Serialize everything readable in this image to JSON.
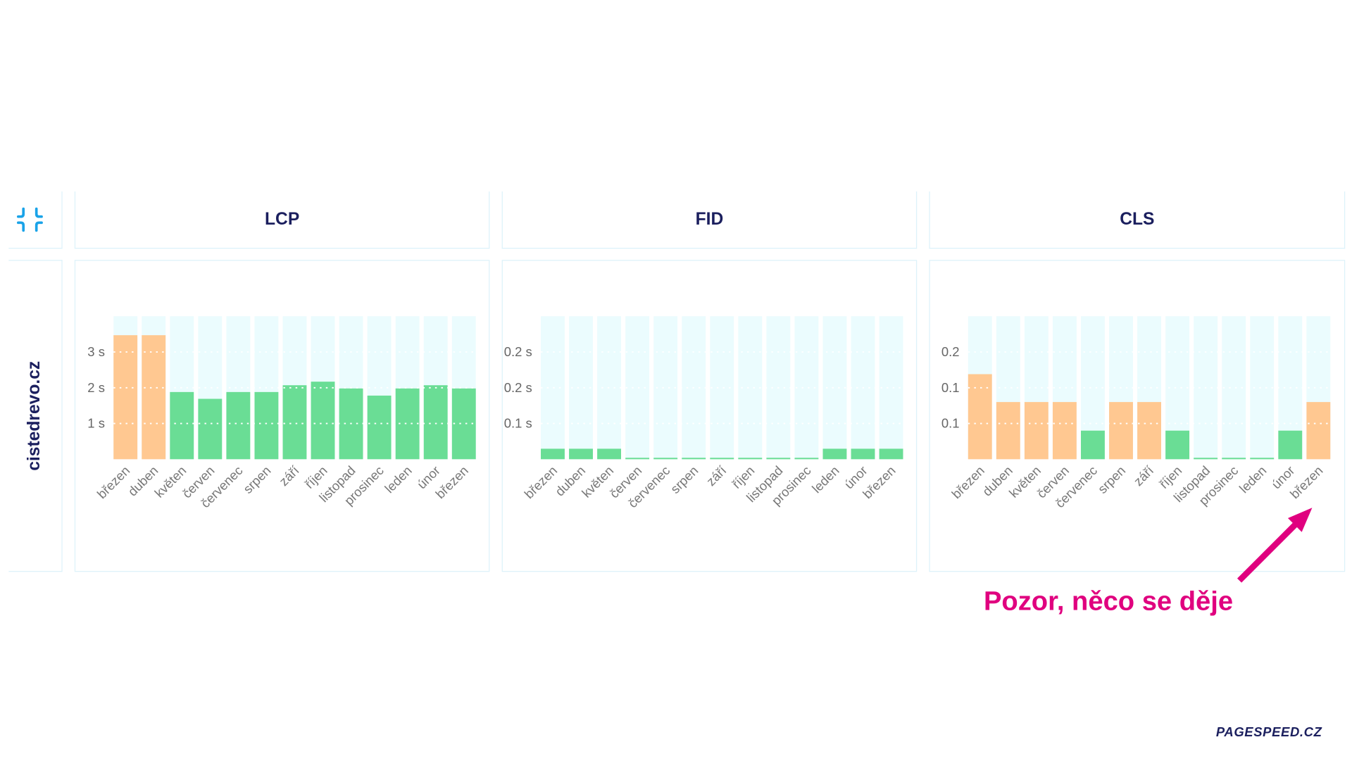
{
  "site": "cistedrevo.cz",
  "icon": "compress-icon",
  "annotation": "Pozor, něco se děje",
  "brand": "PAGESPEED.CZ",
  "colors": {
    "good": "#6add95",
    "needs_improvement": "#ffc891",
    "track": "#ebfcfe",
    "border": "#dcf2fa",
    "title": "#1b1f5e",
    "accent": "#e0007f",
    "icon": "#1aa3e8"
  },
  "chart_data": [
    {
      "type": "bar",
      "title": "LCP",
      "categories": [
        "březen",
        "duben",
        "květen",
        "červen",
        "červenec",
        "srpen",
        "září",
        "říjen",
        "listopad",
        "prosinec",
        "leden",
        "únor",
        "březen"
      ],
      "values": [
        3.47,
        3.47,
        1.88,
        1.69,
        1.88,
        1.88,
        2.07,
        2.17,
        1.98,
        1.78,
        1.98,
        2.07,
        1.98
      ],
      "status": [
        "ni",
        "ni",
        "good",
        "good",
        "good",
        "good",
        "good",
        "good",
        "good",
        "good",
        "good",
        "good",
        "good"
      ],
      "ylim": [
        0,
        4
      ],
      "ticks": [
        1,
        2,
        3
      ],
      "tick_labels": [
        "1 s",
        "2 s",
        "3 s"
      ],
      "grid": true
    },
    {
      "type": "bar",
      "title": "FID",
      "categories": [
        "březen",
        "duben",
        "květen",
        "červen",
        "červenec",
        "srpen",
        "září",
        "říjen",
        "listopad",
        "prosinec",
        "leden",
        "únor",
        "březen"
      ],
      "values": [
        0.022,
        0.022,
        0.022,
        0.003,
        0.003,
        0.003,
        0.003,
        0.003,
        0.003,
        0.003,
        0.022,
        0.022,
        0.022
      ],
      "status": [
        "good",
        "good",
        "good",
        "good",
        "good",
        "good",
        "good",
        "good",
        "good",
        "good",
        "good",
        "good",
        "good"
      ],
      "ylim": [
        0,
        0.3
      ],
      "ticks": [
        0.075,
        0.15,
        0.225
      ],
      "tick_labels": [
        "0.1 s",
        "0.2 s",
        "0.2 s"
      ],
      "grid": true
    },
    {
      "type": "bar",
      "title": "CLS",
      "categories": [
        "březen",
        "duben",
        "květen",
        "červen",
        "červenec",
        "srpen",
        "září",
        "říjen",
        "listopad",
        "prosinec",
        "leden",
        "únor",
        "březen"
      ],
      "values": [
        0.119,
        0.08,
        0.08,
        0.08,
        0.04,
        0.08,
        0.08,
        0.04,
        0.002,
        0.002,
        0.002,
        0.04,
        0.08
      ],
      "status": [
        "ni",
        "ni",
        "ni",
        "ni",
        "good",
        "ni",
        "ni",
        "good",
        "good",
        "good",
        "good",
        "good",
        "ni"
      ],
      "ylim": [
        0,
        0.2
      ],
      "ticks": [
        0.05,
        0.1,
        0.15
      ],
      "tick_labels": [
        "0.1",
        "0.1",
        "0.2"
      ],
      "grid": true
    }
  ]
}
